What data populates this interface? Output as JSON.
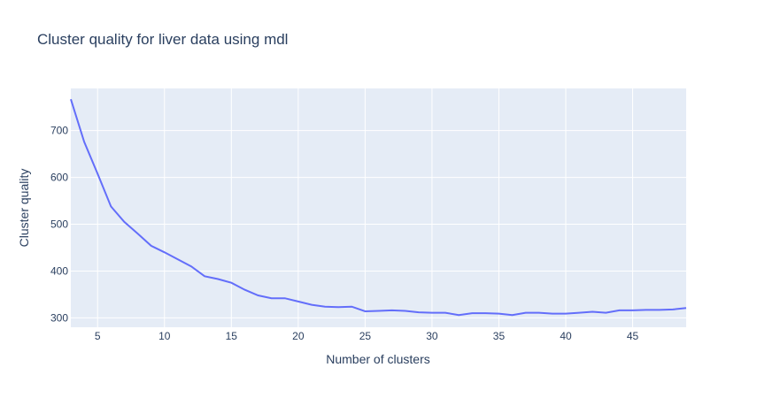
{
  "chart_data": {
    "type": "line",
    "title": "Cluster quality for liver data using mdl",
    "xlabel": "Number of clusters",
    "ylabel": "Cluster quality",
    "xlim": [
      3,
      49
    ],
    "ylim": [
      280,
      790
    ],
    "x_ticks": [
      5,
      10,
      15,
      20,
      25,
      30,
      35,
      40,
      45
    ],
    "y_ticks": [
      300,
      400,
      500,
      600,
      700
    ],
    "grid": true,
    "line_color": "#636efa",
    "plot_bg": "#e5ecf6",
    "grid_color": "#ffffff",
    "series": [
      {
        "x": [
          3,
          4,
          5,
          6,
          7,
          8,
          9,
          10,
          11,
          12,
          13,
          14,
          15,
          16,
          17,
          18,
          19,
          20,
          21,
          22,
          23,
          24,
          25,
          26,
          27,
          28,
          29,
          30,
          31,
          32,
          33,
          34,
          35,
          36,
          37,
          38,
          39,
          40,
          41,
          42,
          43,
          44,
          45,
          46,
          47,
          48,
          49
        ],
        "values": [
          767,
          676,
          608,
          538,
          505,
          480,
          454,
          440,
          425,
          410,
          389,
          383,
          375,
          360,
          348,
          342,
          342,
          335,
          328,
          324,
          323,
          324,
          314,
          315,
          316,
          315,
          312,
          311,
          311,
          306,
          310,
          310,
          309,
          306,
          311,
          311,
          309,
          309,
          311,
          313,
          311,
          316,
          316,
          317,
          317,
          318,
          321
        ]
      }
    ]
  }
}
